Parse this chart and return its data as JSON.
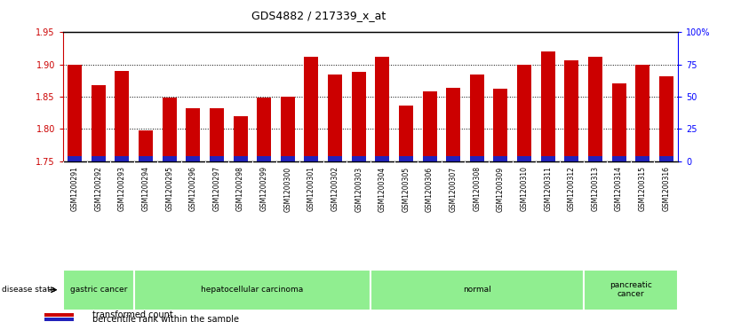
{
  "title": "GDS4882 / 217339_x_at",
  "samples": [
    "GSM1200291",
    "GSM1200292",
    "GSM1200293",
    "GSM1200294",
    "GSM1200295",
    "GSM1200296",
    "GSM1200297",
    "GSM1200298",
    "GSM1200299",
    "GSM1200300",
    "GSM1200301",
    "GSM1200302",
    "GSM1200303",
    "GSM1200304",
    "GSM1200305",
    "GSM1200306",
    "GSM1200307",
    "GSM1200308",
    "GSM1200309",
    "GSM1200310",
    "GSM1200311",
    "GSM1200312",
    "GSM1200313",
    "GSM1200314",
    "GSM1200315",
    "GSM1200316"
  ],
  "transformed_count": [
    1.9,
    1.868,
    1.89,
    1.798,
    1.848,
    1.832,
    1.832,
    1.82,
    1.848,
    1.85,
    1.912,
    1.884,
    1.889,
    1.912,
    1.836,
    1.858,
    1.864,
    1.884,
    1.862,
    1.9,
    1.92,
    1.906,
    1.912,
    1.87,
    1.9,
    1.882
  ],
  "percentile_rank_pct": [
    3.5,
    3.5,
    3.5,
    3.5,
    3.5,
    3.5,
    3.5,
    3.5,
    3.5,
    3.5,
    3.5,
    3.5,
    3.5,
    3.5,
    3.5,
    3.5,
    3.5,
    3.5,
    3.5,
    3.5,
    3.5,
    3.5,
    3.5,
    3.5,
    3.5,
    3.5
  ],
  "ymin": 1.75,
  "ymax": 1.95,
  "y2min": 0,
  "y2max": 100,
  "yticks": [
    1.75,
    1.8,
    1.85,
    1.9,
    1.95
  ],
  "y2ticks": [
    0,
    25,
    50,
    75,
    100
  ],
  "y2ticklabels": [
    "0",
    "25",
    "50",
    "75",
    "100%"
  ],
  "bar_color": "#CC0000",
  "percentile_color": "#2222BB",
  "bar_width": 0.6,
  "grid_ticks": [
    1.8,
    1.85,
    1.9
  ],
  "disease_groups": [
    {
      "label": "gastric cancer",
      "start": 0,
      "end": 2
    },
    {
      "label": "hepatocellular carcinoma",
      "start": 3,
      "end": 12
    },
    {
      "label": "normal",
      "start": 13,
      "end": 21
    },
    {
      "label": "pancreatic\ncancer",
      "start": 22,
      "end": 25
    }
  ],
  "group_color": "#90EE90",
  "tick_label_bg": "#C8C8C8",
  "bar_color_red": "#CC0000",
  "bar_color_blue": "#2222BB",
  "legend_items": [
    {
      "label": "transformed count",
      "color": "#CC0000"
    },
    {
      "label": "percentile rank within the sample",
      "color": "#2222BB"
    }
  ]
}
